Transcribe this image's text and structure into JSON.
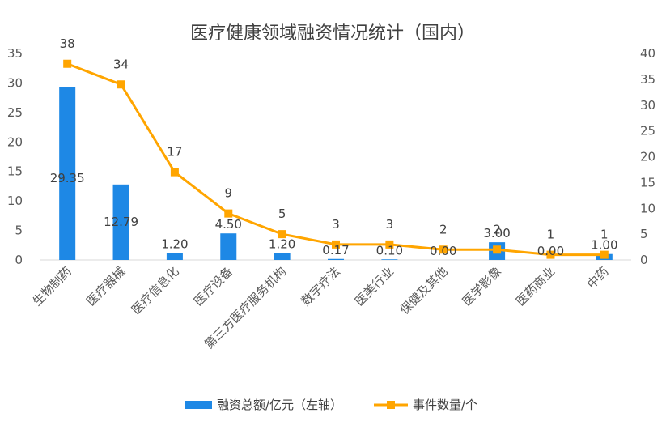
{
  "chart_data": {
    "type": "bar+line",
    "title": "医疗健康领域融资情况统计（国内）",
    "categories": [
      "生物制药",
      "医疗器械",
      "医疗信息化",
      "医疗设备",
      "第三方医疗服务机构",
      "数字疗法",
      "医美行业",
      "保健及其他",
      "医学影像",
      "医药商业",
      "中药"
    ],
    "series": [
      {
        "name": "融资总额/亿元（左轴）",
        "type": "bar",
        "axis": "left",
        "color": "#1E88E5",
        "values": [
          29.35,
          12.79,
          1.2,
          4.5,
          1.2,
          0.17,
          0.1,
          0.0,
          3.0,
          0.0,
          1.0
        ],
        "labels": [
          "29.35",
          "12.79",
          "1.20",
          "4.50",
          "1.20",
          "0.17",
          "0.10",
          "0.00",
          "3.00",
          "0.00",
          "1.00"
        ]
      },
      {
        "name": "事件数量/个",
        "type": "line",
        "axis": "right",
        "color": "#FFA500",
        "values": [
          38,
          34,
          17,
          9,
          5,
          3,
          3,
          2,
          2,
          1,
          1
        ],
        "labels": [
          "38",
          "34",
          "17",
          "9",
          "5",
          "3",
          "3",
          "2",
          "2",
          "1",
          "1"
        ]
      }
    ],
    "y_left": {
      "min": 0,
      "max": 35,
      "ticks": [
        "0",
        "5",
        "10",
        "15",
        "20",
        "25",
        "30",
        "35"
      ]
    },
    "y_right": {
      "min": 0,
      "max": 40,
      "ticks": [
        "0",
        "5",
        "10",
        "15",
        "20",
        "25",
        "30",
        "35",
        "40"
      ]
    },
    "grid": false,
    "legend_position": "bottom"
  }
}
